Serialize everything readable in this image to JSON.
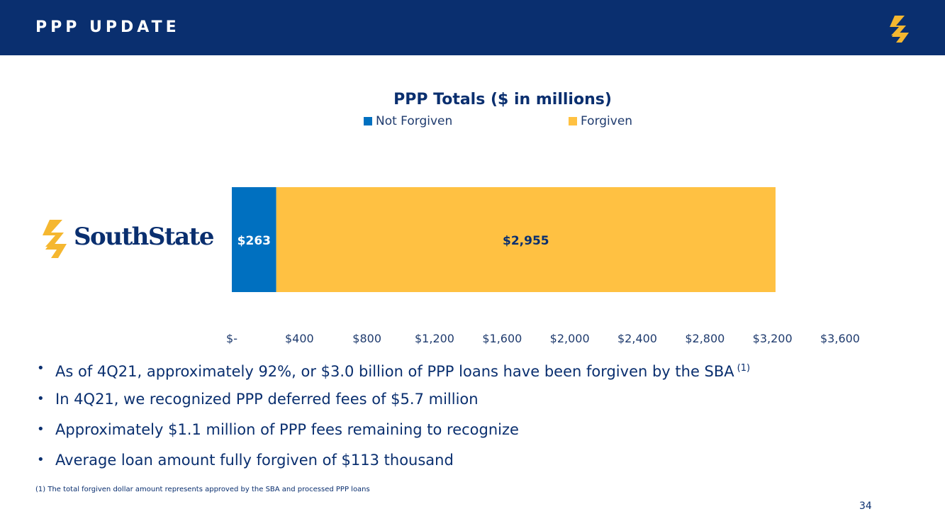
{
  "header": {
    "title": "PPP UPDATE",
    "logo_icon": "southstate-s-icon",
    "background": "#0a2f6f",
    "accent": "#f5b730"
  },
  "logo": {
    "text": "SouthState",
    "icon": "southstate-s-icon"
  },
  "chart_data": {
    "type": "bar",
    "orientation": "horizontal",
    "stacked": true,
    "title": "PPP Totals ($ in millions)",
    "categories": [
      ""
    ],
    "series": [
      {
        "name": "Not Forgiven",
        "values": [
          263
        ],
        "data_labels": [
          "$263"
        ],
        "color": "#0070c0",
        "label_color": "#ffffff"
      },
      {
        "name": "Forgiven",
        "values": [
          2955
        ],
        "data_labels": [
          "$2,955"
        ],
        "color": "#ffc142",
        "label_color": "#0a2f6f"
      }
    ],
    "xlim": [
      0,
      3600
    ],
    "x_ticks": [
      0,
      400,
      800,
      1200,
      1600,
      2000,
      2400,
      2800,
      3200,
      3600
    ],
    "x_tick_labels": [
      "$-",
      "$400",
      "$800",
      "$1,200",
      "$1,600",
      "$2,000",
      "$2,400",
      "$2,800",
      "$3,200",
      "$3,600"
    ],
    "xlabel": "",
    "ylabel": "",
    "grid": false,
    "legend_position": "top"
  },
  "bullets": [
    {
      "text": "As of 4Q21, approximately 92%, or $3.0 billion of PPP loans have been forgiven by the SBA",
      "sup": "(1)"
    },
    {
      "text": "In 4Q21, we recognized PPP deferred fees of $5.7 million"
    },
    {
      "text": "Approximately $1.1 million of PPP fees remaining to recognize"
    },
    {
      "text": "Average loan amount fully forgiven of $113 thousand"
    }
  ],
  "footnote": "(1)  The total forgiven dollar amount represents approved by the SBA and processed PPP loans",
  "page_number": "34"
}
